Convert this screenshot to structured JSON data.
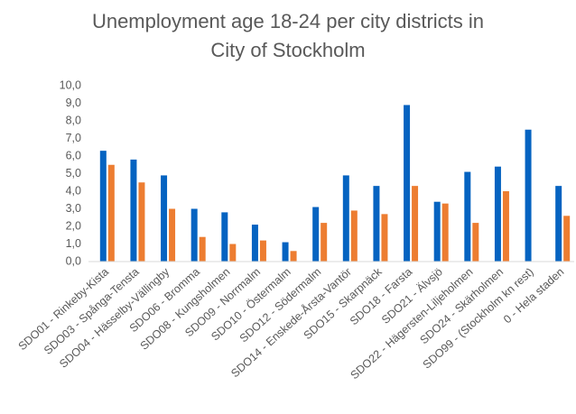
{
  "chart_data": {
    "type": "bar",
    "title": "Unemployment age 18-24 per city districts in City of Stockholm",
    "categories": [
      "SDO01 - Rinkeby-Kista",
      "SDO03 - Spånga-Tensta",
      "SDO04 - Hässelby-Vällingby",
      "SDO06 - Bromma",
      "SDO08 - Kungsholmen",
      "SDO09 - Norrmalm",
      "SDO10 - Östermalm",
      "SDO12 - Södermalm",
      "SDO14 - Enskede-Årsta-Vantör",
      "SDO15 - Skarpnäck",
      "SDO18 - Farsta",
      "SDO21 - Älvsjö",
      "SDO22 - Hägersten-Liljeholmen",
      "SDO24 - Skärholmen",
      "SDO99 - (Stockholm kn rest)",
      "0 - Hela staden"
    ],
    "series": [
      {
        "color": "#0563c1",
        "values": [
          6.3,
          5.8,
          4.9,
          3.0,
          2.8,
          2.1,
          1.1,
          3.1,
          4.9,
          4.3,
          8.9,
          3.4,
          5.1,
          5.4,
          7.5,
          4.3
        ]
      },
      {
        "color": "#ed7d31",
        "values": [
          5.5,
          4.5,
          3.0,
          1.4,
          1.0,
          1.2,
          0.6,
          2.2,
          2.9,
          2.7,
          4.3,
          3.3,
          2.2,
          4.0,
          null,
          2.6
        ]
      }
    ],
    "ylim": [
      0,
      10
    ],
    "yticks": [
      {
        "value": 0,
        "label": "0,0"
      },
      {
        "value": 1,
        "label": "1,0"
      },
      {
        "value": 2,
        "label": "2,0"
      },
      {
        "value": 3,
        "label": "3,0"
      },
      {
        "value": 4,
        "label": "4,0"
      },
      {
        "value": 5,
        "label": "5,0"
      },
      {
        "value": 6,
        "label": "6,0"
      },
      {
        "value": 7,
        "label": "7,0"
      },
      {
        "value": 8,
        "label": "8,0"
      },
      {
        "value": 9,
        "label": "9,0"
      },
      {
        "value": 10,
        "label": "10,0"
      }
    ],
    "grid": false
  }
}
